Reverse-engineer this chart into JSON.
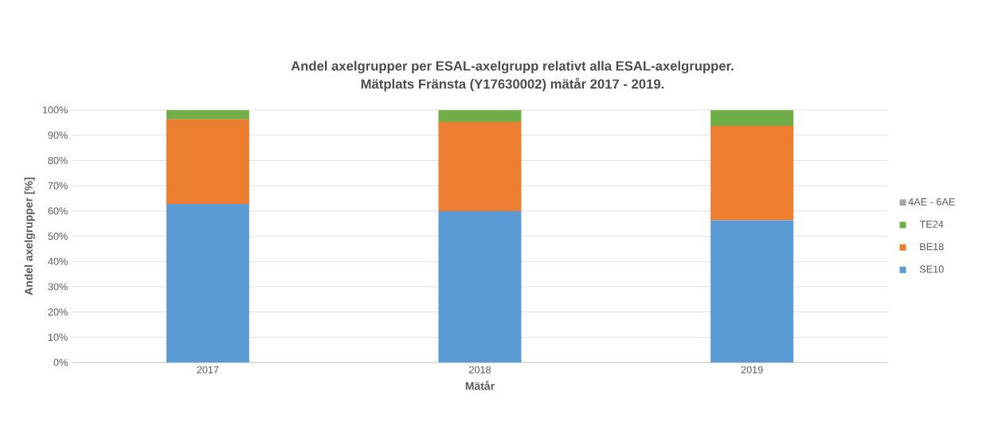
{
  "chart_data": {
    "type": "bar",
    "stacked": true,
    "title": "Andel axelgrupper per ESAL-axelgrupp relativt alla ESAL-axelgrupper.",
    "subtitle": "Mätplats Fränsta (Y17630002)  mätår 2017 - 2019.",
    "xlabel": "Mätår",
    "ylabel": "Andel axelgrupper [%]",
    "categories": [
      "2017",
      "2018",
      "2019"
    ],
    "series": [
      {
        "name": "SE10",
        "color": "#5b9bd5",
        "values": [
          62.8,
          59.9,
          56.3
        ]
      },
      {
        "name": "BE18",
        "color": "#ed7d31",
        "values": [
          33.5,
          35.4,
          37.4
        ]
      },
      {
        "name": "TE24",
        "color": "#70ad47",
        "values": [
          3.6,
          4.6,
          6.2
        ]
      },
      {
        "name": "4AE - 6AE",
        "color": "#a5a5a5",
        "values": [
          null,
          null,
          null
        ]
      }
    ],
    "ylim": [
      0,
      100
    ],
    "yticks": [
      {
        "value": 0,
        "label": "0%"
      },
      {
        "value": 10,
        "label": "10%"
      },
      {
        "value": 20,
        "label": "20%"
      },
      {
        "value": 30,
        "label": "30%"
      },
      {
        "value": 40,
        "label": "40%"
      },
      {
        "value": 50,
        "label": "50%"
      },
      {
        "value": 60,
        "label": "60%"
      },
      {
        "value": 70,
        "label": "70%"
      },
      {
        "value": 80,
        "label": "80%"
      },
      {
        "value": 90,
        "label": "90%"
      },
      {
        "value": 100,
        "label": "100%"
      }
    ],
    "grid": "y",
    "legend": "right"
  }
}
